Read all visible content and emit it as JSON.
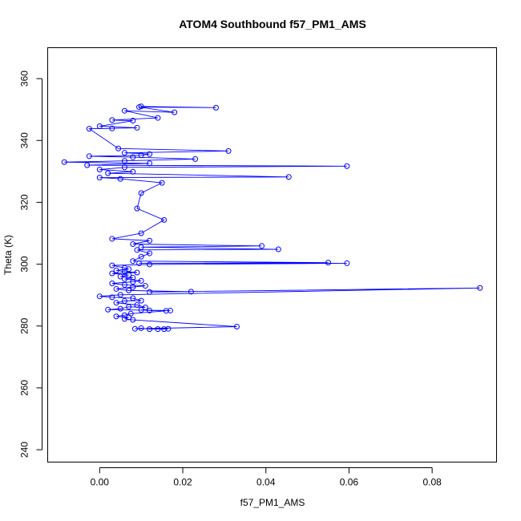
{
  "chart_data": {
    "type": "scatter",
    "title": "ATOM4 Southbound f57_PM1_AMS",
    "xlabel": "f57_PM1_AMS",
    "ylabel": "Theta (K)",
    "xlim": [
      -0.0125,
      0.0955
    ],
    "ylim": [
      236,
      370
    ],
    "x_ticks": [
      0.0,
      0.02,
      0.04,
      0.06,
      0.08
    ],
    "x_tick_labels": [
      "0.00",
      "0.02",
      "0.04",
      "0.06",
      "0.08"
    ],
    "y_ticks": [
      240,
      260,
      280,
      300,
      320,
      340,
      360
    ],
    "y_tick_labels": [
      "240",
      "260",
      "280",
      "300",
      "320",
      "340",
      "360"
    ],
    "grid": false,
    "marker": "open-circle",
    "connected": true,
    "series": [
      {
        "name": "f57_PM1_AMS",
        "color": "#0000ff",
        "points": [
          [
            0.0155,
            279.0
          ],
          [
            0.0165,
            279.1
          ],
          [
            0.014,
            279.0
          ],
          [
            0.012,
            279.0
          ],
          [
            0.01,
            279.3
          ],
          [
            0.0085,
            279.1
          ],
          [
            0.033,
            279.8
          ],
          [
            0.008,
            282.0
          ],
          [
            0.006,
            282.3
          ],
          [
            0.007,
            282.8
          ],
          [
            0.004,
            283.1
          ],
          [
            0.006,
            283.5
          ],
          [
            0.0075,
            284.0
          ],
          [
            0.016,
            284.9
          ],
          [
            0.01,
            285.2
          ],
          [
            0.012,
            285.0
          ],
          [
            0.017,
            285.0
          ],
          [
            0.002,
            285.3
          ],
          [
            0.005,
            285.6
          ],
          [
            0.007,
            286.2
          ],
          [
            0.011,
            286.0
          ],
          [
            0.009,
            286.8
          ],
          [
            0.004,
            287.5
          ],
          [
            0.006,
            288.1
          ],
          [
            0.01,
            288.2
          ],
          [
            0.008,
            289.0
          ],
          [
            0.003,
            289.3
          ],
          [
            0.0,
            289.6
          ],
          [
            0.005,
            290.1
          ],
          [
            0.0915,
            292.3
          ],
          [
            0.012,
            291.0
          ],
          [
            0.022,
            291.1
          ],
          [
            0.007,
            291.5
          ],
          [
            0.004,
            292.0
          ],
          [
            0.008,
            292.6
          ],
          [
            0.011,
            293.0
          ],
          [
            0.006,
            293.3
          ],
          [
            0.003,
            293.8
          ],
          [
            0.008,
            294.3
          ],
          [
            0.01,
            294.6
          ],
          [
            0.006,
            295.2
          ],
          [
            0.008,
            295.6
          ],
          [
            0.005,
            296.0
          ],
          [
            0.007,
            296.5
          ],
          [
            0.003,
            297.0
          ],
          [
            0.009,
            297.3
          ],
          [
            0.006,
            297.6
          ],
          [
            0.004,
            298.0
          ],
          [
            0.007,
            298.4
          ],
          [
            0.006,
            298.8
          ],
          [
            0.003,
            299.6
          ],
          [
            0.012,
            299.9
          ],
          [
            0.0595,
            300.3
          ],
          [
            0.0095,
            300.3
          ],
          [
            0.055,
            300.5
          ],
          [
            0.008,
            301.0
          ],
          [
            0.01,
            302.4
          ],
          [
            0.012,
            303.5
          ],
          [
            0.009,
            304.6
          ],
          [
            0.043,
            304.8
          ],
          [
            0.01,
            305.5
          ],
          [
            0.039,
            305.9
          ],
          [
            0.008,
            306.5
          ],
          [
            0.012,
            307.6
          ],
          [
            0.003,
            308.2
          ],
          [
            0.01,
            310.0
          ],
          [
            0.0155,
            314.3
          ],
          [
            0.009,
            318.0
          ],
          [
            0.01,
            323.0
          ],
          [
            0.015,
            326.3
          ],
          [
            0.005,
            327.6
          ],
          [
            0.0,
            328.0
          ],
          [
            0.0455,
            328.2
          ],
          [
            0.002,
            329.4
          ],
          [
            0.008,
            329.9
          ],
          [
            0.0,
            330.6
          ],
          [
            0.006,
            331.3
          ],
          [
            0.0595,
            331.7
          ],
          [
            -0.003,
            332.0
          ],
          [
            0.012,
            332.6
          ],
          [
            -0.0085,
            333.0
          ],
          [
            0.006,
            333.4
          ],
          [
            0.023,
            334.0
          ],
          [
            0.008,
            334.6
          ],
          [
            -0.0025,
            334.9
          ],
          [
            0.01,
            335.2
          ],
          [
            0.012,
            335.6
          ],
          [
            0.006,
            336.0
          ],
          [
            0.031,
            336.6
          ],
          [
            0.0045,
            337.4
          ],
          [
            -0.0025,
            343.8
          ],
          [
            0.003,
            343.9
          ],
          [
            0.009,
            344.1
          ],
          [
            0.0,
            344.6
          ],
          [
            0.008,
            346.4
          ],
          [
            0.003,
            346.6
          ],
          [
            0.014,
            347.3
          ],
          [
            0.006,
            349.6
          ],
          [
            0.018,
            349.1
          ],
          [
            0.0095,
            350.8
          ],
          [
            0.028,
            350.6
          ],
          [
            0.01,
            351.0
          ]
        ]
      }
    ]
  }
}
